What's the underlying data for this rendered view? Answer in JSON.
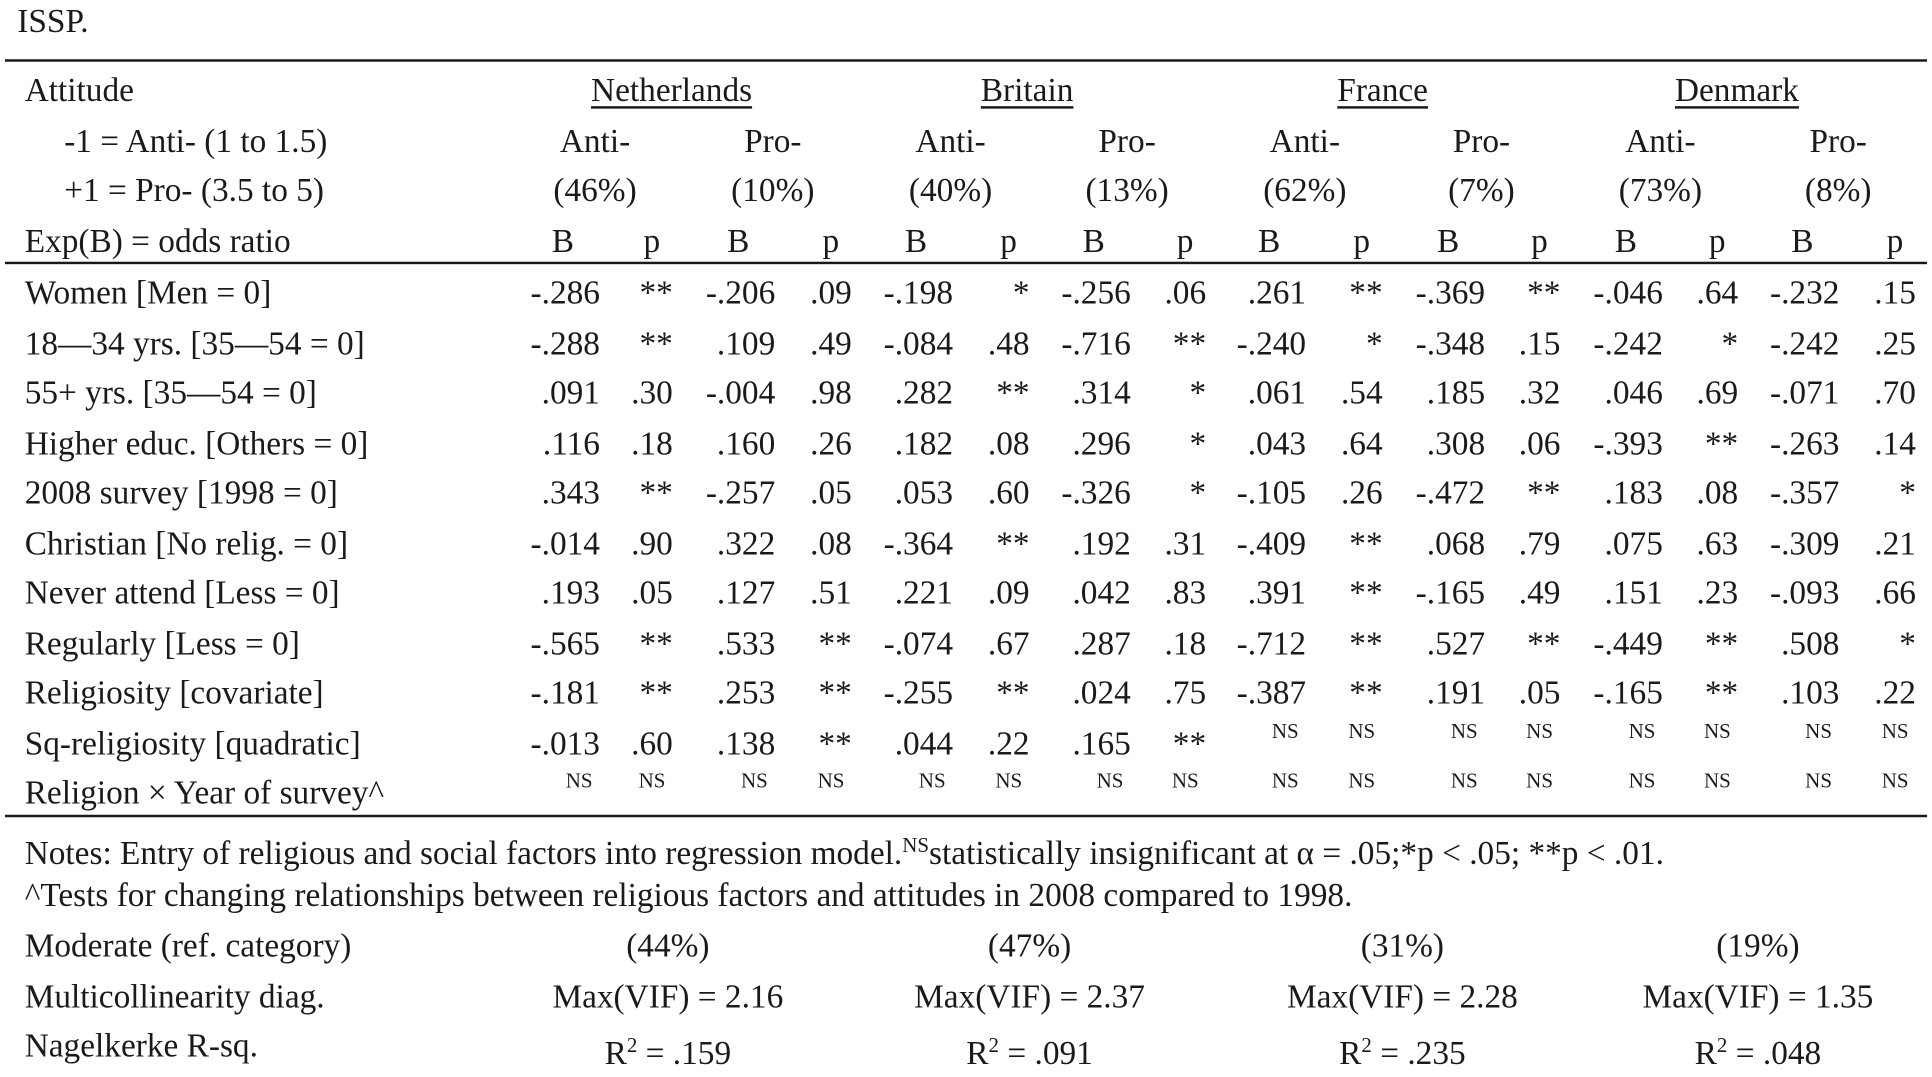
{
  "caption_tail": "ISSP.",
  "header": {
    "stub": [
      "Attitude",
      "-1 = Anti- (1 to 1.5)",
      "+1 = Pro- (3.5 to 5)",
      "Exp(B) = odds ratio"
    ],
    "countries": [
      "Netherlands",
      "Britain",
      "France",
      "Denmark"
    ],
    "groups": [
      {
        "label": "Anti-",
        "pct": "(46%)"
      },
      {
        "label": "Pro-",
        "pct": "(10%)"
      },
      {
        "label": "Anti-",
        "pct": "(40%)"
      },
      {
        "label": "Pro-",
        "pct": "(13%)"
      },
      {
        "label": "Anti-",
        "pct": "(62%)"
      },
      {
        "label": "Pro-",
        "pct": "(7%)"
      },
      {
        "label": "Anti-",
        "pct": "(73%)"
      },
      {
        "label": "Pro-",
        "pct": "(8%)"
      }
    ],
    "col_b": "B",
    "col_p": "p"
  },
  "rows": [
    {
      "label": "Women [Men = 0]",
      "cells": [
        "-.286",
        "**",
        "-.206",
        ".09",
        "-.198",
        "*",
        "-.256",
        ".06",
        ".261",
        "**",
        "-.369",
        "**",
        "-.046",
        ".64",
        "-.232",
        ".15"
      ]
    },
    {
      "label": "18—34 yrs. [35—54 = 0]",
      "cells": [
        "-.288",
        "**",
        ".109",
        ".49",
        "-.084",
        ".48",
        "-.716",
        "**",
        "-.240",
        "*",
        "-.348",
        ".15",
        "-.242",
        "*",
        "-.242",
        ".25"
      ]
    },
    {
      "label": "55+ yrs. [35—54 = 0]",
      "cells": [
        ".091",
        ".30",
        "-.004",
        ".98",
        ".282",
        "**",
        ".314",
        "*",
        ".061",
        ".54",
        ".185",
        ".32",
        ".046",
        ".69",
        "-.071",
        ".70"
      ]
    },
    {
      "label": "Higher educ. [Others = 0]",
      "cells": [
        ".116",
        ".18",
        ".160",
        ".26",
        ".182",
        ".08",
        ".296",
        "*",
        ".043",
        ".64",
        ".308",
        ".06",
        "-.393",
        "**",
        "-.263",
        ".14"
      ]
    },
    {
      "label": "2008 survey [1998 = 0]",
      "cells": [
        ".343",
        "**",
        "-.257",
        ".05",
        ".053",
        ".60",
        "-.326",
        "*",
        "-.105",
        ".26",
        "-.472",
        "**",
        ".183",
        ".08",
        "-.357",
        "*"
      ]
    },
    {
      "label": "Christian [No relig. = 0]",
      "cells": [
        "-.014",
        ".90",
        ".322",
        ".08",
        "-.364",
        "**",
        ".192",
        ".31",
        "-.409",
        "**",
        ".068",
        ".79",
        ".075",
        ".63",
        "-.309",
        ".21"
      ]
    },
    {
      "label": "Never attend [Less = 0]",
      "cells": [
        ".193",
        ".05",
        ".127",
        ".51",
        ".221",
        ".09",
        ".042",
        ".83",
        ".391",
        "**",
        "-.165",
        ".49",
        ".151",
        ".23",
        "-.093",
        ".66"
      ]
    },
    {
      "label": "Regularly [Less = 0]",
      "cells": [
        "-.565",
        "**",
        ".533",
        "**",
        "-.074",
        ".67",
        ".287",
        ".18",
        "-.712",
        "**",
        ".527",
        "**",
        "-.449",
        "**",
        ".508",
        "*"
      ]
    },
    {
      "label": "Religiosity [covariate]",
      "cells": [
        "-.181",
        "**",
        ".253",
        "**",
        "-.255",
        "**",
        ".024",
        ".75",
        "-.387",
        "**",
        ".191",
        ".05",
        "-.165",
        "**",
        ".103",
        ".22"
      ]
    },
    {
      "label": "Sq-religiosity [quadratic]",
      "cells": [
        "-.013",
        ".60",
        ".138",
        "**",
        ".044",
        ".22",
        ".165",
        "**",
        "NS",
        "NS",
        "NS",
        "NS",
        "NS",
        "NS",
        "NS",
        "NS"
      ]
    },
    {
      "label": "Religion × Year of survey^",
      "cells": [
        "NS",
        "NS",
        "NS",
        "NS",
        "NS",
        "NS",
        "NS",
        "NS",
        "NS",
        "NS",
        "NS",
        "NS",
        "NS",
        "NS",
        "NS",
        "NS"
      ]
    }
  ],
  "notes": {
    "line1_a": "Notes: Entry of religious and social factors into regression model.",
    "line1_sup": "NS",
    "line1_b": "statistically insignificant at α = .05;*p < .05; **p < .01.",
    "line2": "^Tests for changing relationships between religious factors and attitudes in 2008 compared to 1998."
  },
  "summary": [
    {
      "label": "Moderate (ref. category)",
      "values": [
        "(44%)",
        "(47%)",
        "(31%)",
        "(19%)"
      ]
    },
    {
      "label": "Multicollinearity diag.",
      "values": [
        "Max(VIF) = 2.16",
        "Max(VIF) = 2.37",
        "Max(VIF) = 2.28",
        "Max(VIF) = 1.35"
      ]
    },
    {
      "label": "Nagelkerke R-sq.",
      "r_prefix": "R",
      "r_sup": "2",
      "values": [
        " = .159",
        " = .091",
        " = .235",
        " = .048"
      ]
    }
  ]
}
